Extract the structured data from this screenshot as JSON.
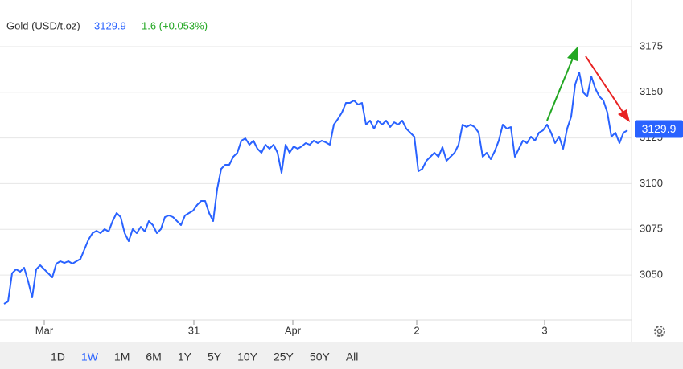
{
  "chart_data": {
    "type": "line",
    "title": "Gold (USD/t.oz)",
    "price": 3129.9,
    "change": "1.6 (+0.053%)",
    "color": "#2962ff",
    "price_color": "#2962ff",
    "change_color": "#22a722",
    "values": [
      3034.2,
      3035.5,
      3050.9,
      3053.1,
      3051.8,
      3054.0,
      3046.5,
      3037.7,
      3053.1,
      3055.3,
      3053.1,
      3050.9,
      3048.7,
      3056.2,
      3057.5,
      3056.6,
      3057.5,
      3056.2,
      3057.5,
      3058.8,
      3064.1,
      3069.4,
      3072.9,
      3074.2,
      3072.9,
      3075.1,
      3073.8,
      3079.5,
      3083.9,
      3081.7,
      3072.9,
      3068.5,
      3075.1,
      3072.9,
      3076.4,
      3073.8,
      3079.5,
      3077.3,
      3072.9,
      3075.1,
      3081.7,
      3082.6,
      3081.7,
      3079.5,
      3077.3,
      3082.6,
      3083.9,
      3085.2,
      3088.3,
      3090.5,
      3090.5,
      3083.9,
      3079.5,
      3097.1,
      3108.1,
      3110.3,
      3110.3,
      3114.7,
      3116.9,
      3123.5,
      3124.8,
      3121.3,
      3123.5,
      3119.1,
      3116.9,
      3121.3,
      3119.1,
      3121.3,
      3116.9,
      3105.9,
      3121.3,
      3116.9,
      3120.4,
      3119.1,
      3120.4,
      3122.2,
      3121.3,
      3123.5,
      3122.2,
      3123.5,
      3122.6,
      3121.3,
      3132.3,
      3135.4,
      3138.9,
      3144.2,
      3144.2,
      3145.5,
      3143.3,
      3144.2,
      3132.3,
      3134.5,
      3130.1,
      3134.5,
      3132.3,
      3134.5,
      3131.0,
      3133.6,
      3132.3,
      3134.5,
      3130.1,
      3127.9,
      3125.7,
      3106.8,
      3108.1,
      3112.5,
      3114.7,
      3116.9,
      3114.7,
      3120.0,
      3112.5,
      3114.7,
      3116.9,
      3121.3,
      3132.3,
      3131.0,
      3132.3,
      3131.0,
      3127.9,
      3114.7,
      3116.9,
      3113.4,
      3117.8,
      3123.5,
      3132.3,
      3130.1,
      3131.0,
      3114.7,
      3119.1,
      3123.5,
      3122.2,
      3125.7,
      3123.5,
      3127.9,
      3129.2,
      3132.3,
      3127.9,
      3122.2,
      3125.7,
      3119.1,
      3130.1,
      3136.7,
      3154.3,
      3160.9,
      3149.9,
      3147.7,
      3158.7,
      3152.1,
      3147.7,
      3145.5,
      3138.9,
      3125.7,
      3127.9,
      3122.2,
      3127.9,
      3129.2
    ],
    "xlim": [
      0,
      155
    ],
    "xticks": [
      {
        "value": 10,
        "label": "Mar"
      },
      {
        "value": 47.2,
        "label": "31"
      },
      {
        "value": 71.8,
        "label": "Apr"
      },
      {
        "value": 102.6,
        "label": "2"
      },
      {
        "value": 134.4,
        "label": "3"
      }
    ],
    "ylim": [
      3025.4,
      3200.5
    ],
    "yticks": [
      3050,
      3075,
      3100,
      3125,
      3150,
      3175
    ],
    "grid": true
  },
  "range_buttons": [
    "1D",
    "1W",
    "1M",
    "6M",
    "1Y",
    "5Y",
    "10Y",
    "25Y",
    "50Y",
    "All"
  ],
  "selected_range": "1W"
}
